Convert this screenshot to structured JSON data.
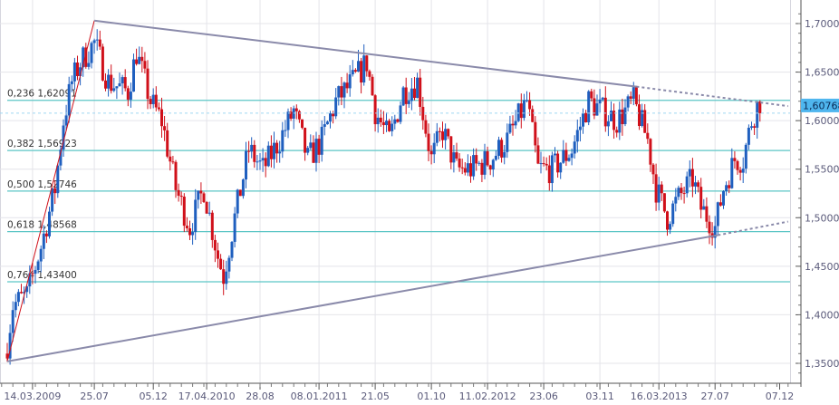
{
  "chart_data": {
    "type": "candlestick",
    "title": "",
    "y_axis": {
      "range": [
        1.34,
        1.72
      ],
      "ticks": [
        "1,3500",
        "1,4000",
        "1,4500",
        "1,5000",
        "1,5500",
        "1,6000",
        "1,6500",
        "1,7000"
      ],
      "tick_values": [
        1.35,
        1.4,
        1.45,
        1.5,
        1.55,
        1.6,
        1.65,
        1.7
      ]
    },
    "x_axis": {
      "labels": [
        "14.03.2009",
        "25.07",
        "05.12",
        "17.04.2010",
        "28.08",
        "08.01.2011",
        "21.05",
        "01.10",
        "11.02.2012",
        "23.06",
        "03.11",
        "16.03.2013",
        "27.07",
        "07.12"
      ],
      "label_weeks": [
        9,
        31,
        52,
        71,
        90,
        111,
        131,
        151,
        171,
        191,
        211,
        232,
        252,
        275
      ],
      "week_range": [
        -2,
        280
      ]
    },
    "current_price": {
      "value": 1.60768,
      "label": "1,60768"
    },
    "fibonacci": [
      {
        "ratio_label": "0,236 1,62091",
        "value": 1.62091
      },
      {
        "ratio_label": "0,382 1,56923",
        "value": 1.56923
      },
      {
        "ratio_label": "0,500 1,52746",
        "value": 1.52746
      },
      {
        "ratio_label": "0,618 1,48568",
        "value": 1.48568
      },
      {
        "ratio_label": "0,764 1,43400",
        "value": 1.434
      }
    ],
    "fib_anchor": {
      "from": [
        0,
        1.352
      ],
      "to": [
        31,
        1.703
      ]
    },
    "trendlines": [
      {
        "name": "upper",
        "from": [
          31,
          1.703
        ],
        "to": [
          224,
          1.635
        ],
        "extend_to": [
          278,
          1.615
        ]
      },
      {
        "name": "lower",
        "from": [
          0,
          1.352
        ],
        "to": [
          253,
          1.482
        ],
        "extend_to": [
          278,
          1.496
        ]
      }
    ],
    "close_path": [
      [
        0,
        1.37
      ],
      [
        2,
        1.41
      ],
      [
        7,
        1.42
      ],
      [
        12,
        1.47
      ],
      [
        17,
        1.53
      ],
      [
        20,
        1.6
      ],
      [
        23,
        1.64
      ],
      [
        26,
        1.66
      ],
      [
        31,
        1.68
      ],
      [
        36,
        1.64
      ],
      [
        43,
        1.63
      ],
      [
        46,
        1.67
      ],
      [
        51,
        1.62
      ],
      [
        55,
        1.6
      ],
      [
        60,
        1.53
      ],
      [
        65,
        1.49
      ],
      [
        70,
        1.53
      ],
      [
        75,
        1.46
      ],
      [
        77,
        1.44
      ],
      [
        81,
        1.5
      ],
      [
        86,
        1.57
      ],
      [
        91,
        1.55
      ],
      [
        97,
        1.58
      ],
      [
        102,
        1.61
      ],
      [
        107,
        1.56
      ],
      [
        112,
        1.58
      ],
      [
        117,
        1.62
      ],
      [
        123,
        1.64
      ],
      [
        128,
        1.66
      ],
      [
        131,
        1.61
      ],
      [
        136,
        1.58
      ],
      [
        141,
        1.63
      ],
      [
        146,
        1.64
      ],
      [
        151,
        1.56
      ],
      [
        155,
        1.59
      ],
      [
        160,
        1.55
      ],
      [
        165,
        1.55
      ],
      [
        172,
        1.56
      ],
      [
        178,
        1.58
      ],
      [
        185,
        1.62
      ],
      [
        189,
        1.55
      ],
      [
        194,
        1.55
      ],
      [
        201,
        1.57
      ],
      [
        207,
        1.62
      ],
      [
        212,
        1.61
      ],
      [
        217,
        1.6
      ],
      [
        223,
        1.62
      ],
      [
        228,
        1.58
      ],
      [
        231,
        1.53
      ],
      [
        235,
        1.5
      ],
      [
        239,
        1.52
      ],
      [
        244,
        1.54
      ],
      [
        247,
        1.51
      ],
      [
        252,
        1.49
      ],
      [
        255,
        1.53
      ],
      [
        259,
        1.56
      ],
      [
        262,
        1.56
      ],
      [
        265,
        1.6
      ],
      [
        267,
        1.615
      ],
      [
        268,
        1.6077
      ]
    ],
    "colors": {
      "up": "#1f5fbf",
      "down": "#d0101a",
      "fib": "#5cc6c6",
      "trend": "#8a8aaa",
      "grid": "#e4e4ea",
      "price_tag": "#4fb6ee"
    }
  }
}
